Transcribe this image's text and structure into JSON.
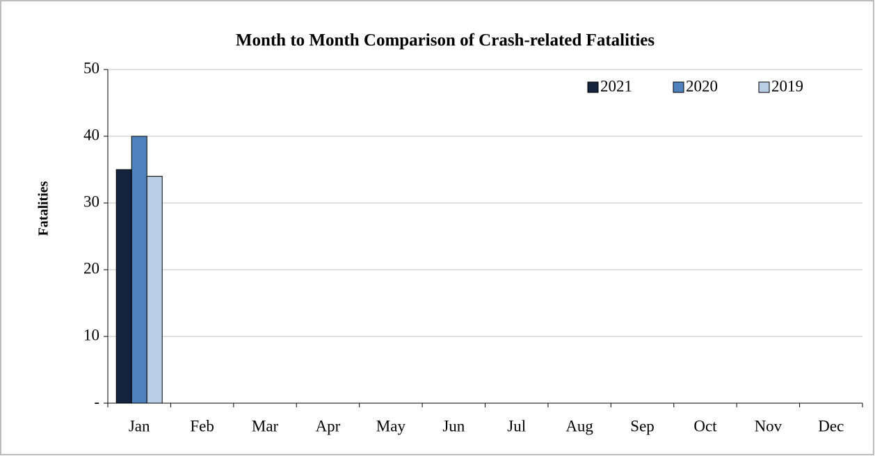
{
  "chart_data": {
    "type": "bar",
    "title": "Month to Month Comparison  of Crash-related Fatalities",
    "ylabel": "Fatalities",
    "categories": [
      "Jan",
      "Feb",
      "Mar",
      "Apr",
      "May",
      "Jun",
      "Jul",
      "Aug",
      "Sep",
      "Oct",
      "Nov",
      "Dec"
    ],
    "series": [
      {
        "name": "2021",
        "color": "#14243f",
        "values": [
          35,
          null,
          null,
          null,
          null,
          null,
          null,
          null,
          null,
          null,
          null,
          null
        ]
      },
      {
        "name": "2020",
        "color": "#4f81bd",
        "values": [
          40,
          null,
          null,
          null,
          null,
          null,
          null,
          null,
          null,
          null,
          null,
          null
        ]
      },
      {
        "name": "2019",
        "color": "#b9cde5",
        "values": [
          34,
          null,
          null,
          null,
          null,
          null,
          null,
          null,
          null,
          null,
          null,
          null
        ]
      }
    ],
    "ylim": [
      0,
      50
    ],
    "yticks": [
      {
        "value": 0,
        "label": "-"
      },
      10,
      20,
      30,
      40,
      50
    ],
    "grid": true,
    "legend": "top-right"
  }
}
